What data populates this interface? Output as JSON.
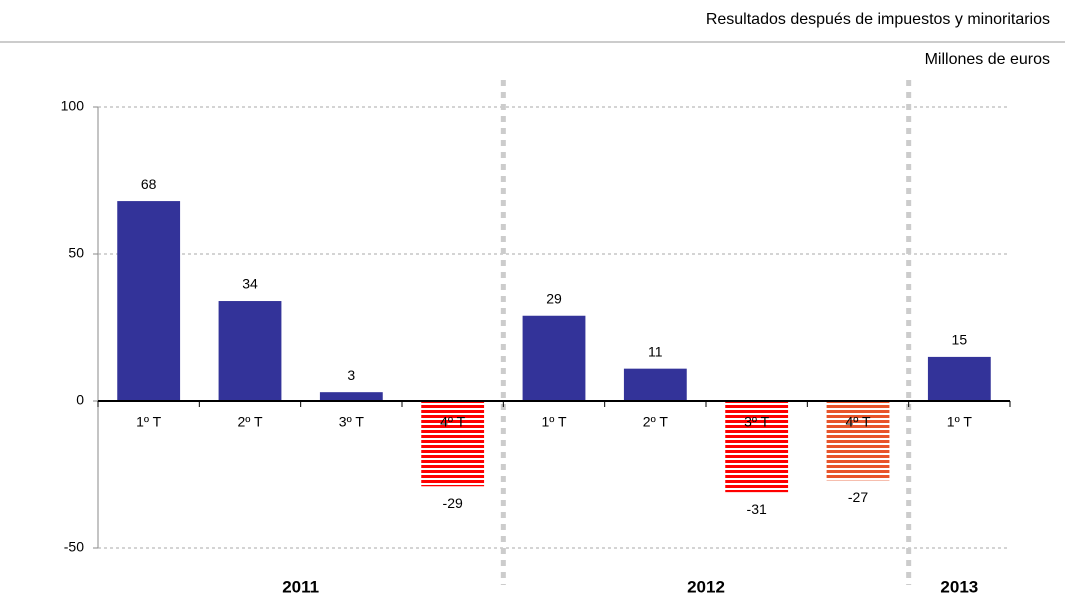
{
  "chart_data": {
    "type": "bar",
    "title": "Resultados después de impuestos y minoritarios",
    "subtitle": "Millones de euros",
    "categories": [
      "1º T",
      "2º T",
      "3º T",
      "4º T",
      "1º T",
      "2º T",
      "3º T",
      "4º T",
      "1º T"
    ],
    "groups": [
      "2011",
      "2011",
      "2011",
      "2011",
      "2012",
      "2012",
      "2012",
      "2012",
      "2013"
    ],
    "values": [
      68,
      34,
      3,
      -29,
      29,
      11,
      -31,
      -27,
      15
    ],
    "colors": [
      "#333399",
      "#333399",
      "#333399",
      "#ff0000",
      "#333399",
      "#333399",
      "#ff0000",
      "#e8542a",
      "#333399"
    ],
    "striped": [
      false,
      false,
      false,
      true,
      false,
      false,
      true,
      true,
      false
    ],
    "ylim": [
      -50,
      100
    ],
    "yticks": [
      -50,
      0,
      50,
      100
    ],
    "grid": true
  }
}
